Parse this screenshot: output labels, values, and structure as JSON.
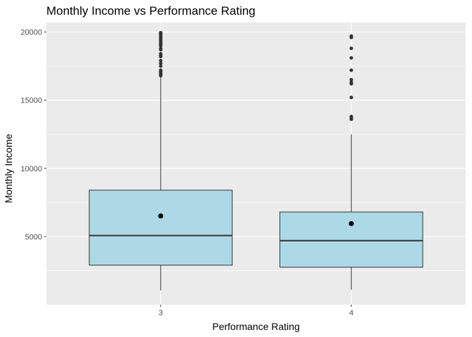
{
  "chart_data": {
    "type": "boxplot",
    "title": "Monthly Income vs Performance Rating",
    "xlabel": "Performance Rating",
    "ylabel": "Monthly Income",
    "categories": [
      "3",
      "4"
    ],
    "ylim": [
      0,
      20700
    ],
    "yticks": [
      5000,
      10000,
      15000,
      20000
    ],
    "grid": true,
    "colors": {
      "panel": "#ebebeb",
      "grid": "#ffffff",
      "box_fill": "#add8e6",
      "line": "#333333"
    },
    "boxes": [
      {
        "category": "3",
        "whisker_low": 1051,
        "q1": 2900,
        "median": 5070,
        "q3": 8400,
        "whisker_high": 16900,
        "mean": 6510,
        "outliers": [
          16800,
          16900,
          17000,
          17100,
          17200,
          17500,
          17700,
          17900,
          18200,
          18300,
          18400,
          18700,
          18800,
          19000,
          19100,
          19200,
          19300,
          19400,
          19500,
          19600,
          19700,
          19800,
          19900,
          19950
        ]
      },
      {
        "category": "4",
        "whisker_low": 1100,
        "q1": 2750,
        "median": 4700,
        "q3": 6800,
        "whisker_high": 12500,
        "mean": 5950,
        "outliers": [
          13600,
          13700,
          13800,
          15200,
          16200,
          16300,
          16500,
          17200,
          18100,
          18800,
          19600,
          19700
        ]
      }
    ]
  }
}
